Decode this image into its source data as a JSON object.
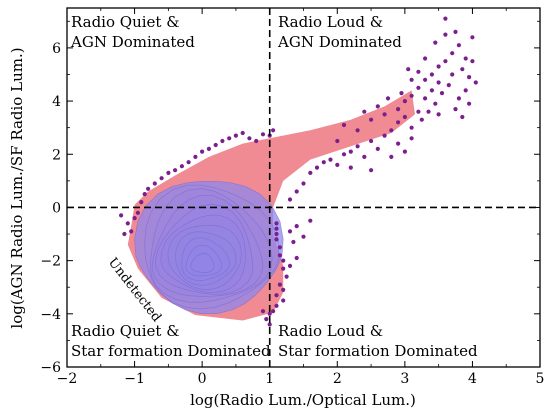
{
  "chart_data": {
    "type": "scatter",
    "title": "",
    "xlabel": "log(Radio Lum./Optical Lum.)",
    "ylabel": "log(AGN Radio Lum./SF Radio Lum.)",
    "xlim": [
      -2,
      5
    ],
    "ylim": [
      -6,
      7.5
    ],
    "xticks": [
      "−2",
      "−1",
      "0",
      "1",
      "2",
      "3",
      "4",
      "5"
    ],
    "yticks": [
      "−6",
      "−4",
      "−2",
      "0",
      "2",
      "4",
      "6"
    ],
    "xtick_values": [
      -2,
      -1,
      0,
      1,
      2,
      3,
      4,
      5
    ],
    "ytick_values": [
      -6,
      -4,
      -2,
      0,
      2,
      4,
      6
    ],
    "divider_lines": {
      "x": 1,
      "y": 0
    },
    "quadrant_labels": {
      "top_left": [
        "Radio Quiet &",
        "AGN Dominated"
      ],
      "top_right": [
        "Radio Loud &",
        "AGN Dominated"
      ],
      "bottom_left": [
        "Radio Quiet &",
        "Star formation Dominated"
      ],
      "bottom_right": [
        "Radio Loud &",
        "Star formation Dominated"
      ]
    },
    "annotation": "Undetected",
    "density": {
      "outer_color": "#f08a93",
      "inner_color": "#8f87ee",
      "peak": [
        0.0,
        -2.2
      ]
    },
    "points_color": "#7b1f8c",
    "points": [
      [
        -1.2,
        -0.3
      ],
      [
        -1.1,
        -0.6
      ],
      [
        -1.15,
        -1.0
      ],
      [
        -1.05,
        -0.9
      ],
      [
        -1.0,
        -0.4
      ],
      [
        -0.95,
        -0.2
      ],
      [
        -0.9,
        0.2
      ],
      [
        -0.85,
        0.5
      ],
      [
        -0.8,
        0.7
      ],
      [
        -0.7,
        0.9
      ],
      [
        -0.6,
        1.1
      ],
      [
        -0.5,
        1.3
      ],
      [
        -0.4,
        1.4
      ],
      [
        -0.3,
        1.55
      ],
      [
        -0.2,
        1.7
      ],
      [
        -0.1,
        1.9
      ],
      [
        0.0,
        2.1
      ],
      [
        0.1,
        2.2
      ],
      [
        0.2,
        2.35
      ],
      [
        0.3,
        2.5
      ],
      [
        0.4,
        2.6
      ],
      [
        0.5,
        2.7
      ],
      [
        0.6,
        2.8
      ],
      [
        0.7,
        2.6
      ],
      [
        0.8,
        2.5
      ],
      [
        0.9,
        2.75
      ],
      [
        1.0,
        2.7
      ],
      [
        1.05,
        2.9
      ],
      [
        1.1,
        -0.6
      ],
      [
        1.1,
        -0.8
      ],
      [
        1.1,
        -1.0
      ],
      [
        1.1,
        -1.2
      ],
      [
        1.15,
        -1.5
      ],
      [
        1.15,
        -1.8
      ],
      [
        1.2,
        -2.0
      ],
      [
        1.2,
        -2.3
      ],
      [
        1.25,
        -2.6
      ],
      [
        1.15,
        -2.9
      ],
      [
        1.2,
        -3.1
      ],
      [
        1.1,
        -3.3
      ],
      [
        1.2,
        -3.5
      ],
      [
        1.1,
        -3.7
      ],
      [
        1.05,
        -3.9
      ],
      [
        1.0,
        -4.0
      ],
      [
        0.95,
        -4.2
      ],
      [
        0.9,
        -3.9
      ],
      [
        1.0,
        -4.4
      ],
      [
        1.3,
        -0.9
      ],
      [
        1.35,
        -1.3
      ],
      [
        1.4,
        -0.7
      ],
      [
        1.5,
        -1.1
      ],
      [
        1.4,
        -1.9
      ],
      [
        1.3,
        -2.2
      ],
      [
        1.6,
        -0.5
      ],
      [
        1.3,
        0.3
      ],
      [
        1.4,
        0.6
      ],
      [
        1.5,
        0.9
      ],
      [
        1.6,
        1.3
      ],
      [
        1.7,
        1.5
      ],
      [
        1.8,
        1.7
      ],
      [
        1.9,
        1.8
      ],
      [
        2.0,
        1.6
      ],
      [
        2.1,
        2.0
      ],
      [
        2.2,
        2.1
      ],
      [
        2.3,
        2.3
      ],
      [
        2.4,
        1.9
      ],
      [
        2.5,
        2.5
      ],
      [
        2.6,
        2.2
      ],
      [
        2.7,
        2.7
      ],
      [
        2.8,
        2.9
      ],
      [
        2.9,
        3.2
      ],
      [
        3.0,
        3.4
      ],
      [
        3.1,
        3.0
      ],
      [
        3.2,
        3.6
      ],
      [
        2.5,
        1.4
      ],
      [
        2.2,
        1.5
      ],
      [
        2.8,
        1.9
      ],
      [
        2.9,
        2.4
      ],
      [
        3.0,
        2.1
      ],
      [
        3.1,
        2.6
      ],
      [
        2.0,
        2.5
      ],
      [
        2.1,
        3.1
      ],
      [
        2.3,
        2.9
      ],
      [
        2.5,
        3.3
      ],
      [
        2.7,
        3.5
      ],
      [
        2.9,
        3.7
      ],
      [
        3.0,
        4.0
      ],
      [
        3.1,
        4.2
      ],
      [
        3.2,
        4.5
      ],
      [
        3.3,
        4.8
      ],
      [
        3.4,
        5.0
      ],
      [
        3.5,
        5.3
      ],
      [
        3.6,
        5.5
      ],
      [
        3.7,
        5.8
      ],
      [
        3.8,
        6.1
      ],
      [
        3.9,
        5.6
      ],
      [
        4.0,
        6.4
      ],
      [
        3.6,
        7.1
      ],
      [
        3.75,
        6.6
      ],
      [
        3.85,
        5.2
      ],
      [
        3.95,
        4.9
      ],
      [
        3.65,
        4.6
      ],
      [
        3.55,
        4.3
      ],
      [
        3.45,
        3.9
      ],
      [
        3.35,
        3.6
      ],
      [
        3.25,
        3.3
      ],
      [
        3.4,
        4.4
      ],
      [
        3.5,
        4.7
      ],
      [
        3.7,
        5.0
      ],
      [
        3.8,
        4.1
      ],
      [
        3.9,
        4.4
      ],
      [
        4.0,
        5.5
      ],
      [
        3.3,
        5.6
      ],
      [
        3.2,
        5.1
      ],
      [
        3.1,
        4.8
      ],
      [
        3.45,
        6.2
      ],
      [
        3.6,
        6.5
      ],
      [
        3.75,
        3.7
      ],
      [
        3.85,
        3.4
      ],
      [
        2.6,
        3.8
      ],
      [
        2.4,
        3.6
      ],
      [
        2.75,
        4.1
      ],
      [
        2.95,
        4.3
      ],
      [
        3.05,
        5.2
      ],
      [
        4.05,
        4.7
      ],
      [
        3.95,
        3.9
      ],
      [
        3.5,
        3.5
      ],
      [
        3.3,
        4.1
      ]
    ]
  }
}
